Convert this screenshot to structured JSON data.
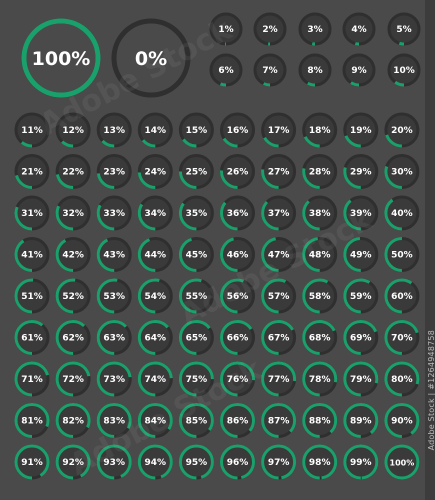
{
  "colors": {
    "background": "#4a4a4a",
    "circle_fill": "#3a3a3a",
    "track": "#2f2f2f",
    "progress": "#1aa06b",
    "text": "#ffffff"
  },
  "large_indicators": [
    {
      "value": 100,
      "label": "100%"
    },
    {
      "value": 0,
      "label": "0%"
    }
  ],
  "small_indicators": [
    {
      "value": 1,
      "label": "1%"
    },
    {
      "value": 2,
      "label": "2%"
    },
    {
      "value": 3,
      "label": "3%"
    },
    {
      "value": 4,
      "label": "4%"
    },
    {
      "value": 5,
      "label": "5%"
    },
    {
      "value": 6,
      "label": "6%"
    },
    {
      "value": 7,
      "label": "7%"
    },
    {
      "value": 8,
      "label": "8%"
    },
    {
      "value": 9,
      "label": "9%"
    },
    {
      "value": 10,
      "label": "10%"
    }
  ],
  "grid_indicators": [
    {
      "value": 11,
      "label": "11%"
    },
    {
      "value": 12,
      "label": "12%"
    },
    {
      "value": 13,
      "label": "13%"
    },
    {
      "value": 14,
      "label": "14%"
    },
    {
      "value": 15,
      "label": "15%"
    },
    {
      "value": 16,
      "label": "16%"
    },
    {
      "value": 17,
      "label": "17%"
    },
    {
      "value": 18,
      "label": "18%"
    },
    {
      "value": 19,
      "label": "19%"
    },
    {
      "value": 20,
      "label": "20%"
    },
    {
      "value": 21,
      "label": "21%"
    },
    {
      "value": 22,
      "label": "22%"
    },
    {
      "value": 23,
      "label": "23%"
    },
    {
      "value": 24,
      "label": "24%"
    },
    {
      "value": 25,
      "label": "25%"
    },
    {
      "value": 26,
      "label": "26%"
    },
    {
      "value": 27,
      "label": "27%"
    },
    {
      "value": 28,
      "label": "28%"
    },
    {
      "value": 29,
      "label": "29%"
    },
    {
      "value": 30,
      "label": "30%"
    },
    {
      "value": 31,
      "label": "31%"
    },
    {
      "value": 32,
      "label": "32%"
    },
    {
      "value": 33,
      "label": "33%"
    },
    {
      "value": 34,
      "label": "34%"
    },
    {
      "value": 35,
      "label": "35%"
    },
    {
      "value": 36,
      "label": "36%"
    },
    {
      "value": 37,
      "label": "37%"
    },
    {
      "value": 38,
      "label": "38%"
    },
    {
      "value": 39,
      "label": "39%"
    },
    {
      "value": 40,
      "label": "40%"
    },
    {
      "value": 41,
      "label": "41%"
    },
    {
      "value": 42,
      "label": "42%"
    },
    {
      "value": 43,
      "label": "43%"
    },
    {
      "value": 44,
      "label": "44%"
    },
    {
      "value": 45,
      "label": "45%"
    },
    {
      "value": 46,
      "label": "46%"
    },
    {
      "value": 47,
      "label": "47%"
    },
    {
      "value": 48,
      "label": "48%"
    },
    {
      "value": 49,
      "label": "49%"
    },
    {
      "value": 50,
      "label": "50%"
    },
    {
      "value": 51,
      "label": "51%"
    },
    {
      "value": 52,
      "label": "52%"
    },
    {
      "value": 53,
      "label": "53%"
    },
    {
      "value": 54,
      "label": "54%"
    },
    {
      "value": 55,
      "label": "55%"
    },
    {
      "value": 56,
      "label": "56%"
    },
    {
      "value": 57,
      "label": "57%"
    },
    {
      "value": 58,
      "label": "58%"
    },
    {
      "value": 59,
      "label": "59%"
    },
    {
      "value": 60,
      "label": "60%"
    },
    {
      "value": 61,
      "label": "61%"
    },
    {
      "value": 62,
      "label": "62%"
    },
    {
      "value": 63,
      "label": "63%"
    },
    {
      "value": 64,
      "label": "64%"
    },
    {
      "value": 65,
      "label": "65%"
    },
    {
      "value": 66,
      "label": "66%"
    },
    {
      "value": 67,
      "label": "67%"
    },
    {
      "value": 68,
      "label": "68%"
    },
    {
      "value": 69,
      "label": "69%"
    },
    {
      "value": 70,
      "label": "70%"
    },
    {
      "value": 71,
      "label": "71%"
    },
    {
      "value": 72,
      "label": "72%"
    },
    {
      "value": 73,
      "label": "73%"
    },
    {
      "value": 74,
      "label": "74%"
    },
    {
      "value": 75,
      "label": "75%"
    },
    {
      "value": 76,
      "label": "76%"
    },
    {
      "value": 77,
      "label": "77%"
    },
    {
      "value": 78,
      "label": "78%"
    },
    {
      "value": 79,
      "label": "79%"
    },
    {
      "value": 80,
      "label": "80%"
    },
    {
      "value": 81,
      "label": "81%"
    },
    {
      "value": 82,
      "label": "82%"
    },
    {
      "value": 83,
      "label": "83%"
    },
    {
      "value": 84,
      "label": "84%"
    },
    {
      "value": 85,
      "label": "85%"
    },
    {
      "value": 86,
      "label": "86%"
    },
    {
      "value": 87,
      "label": "87%"
    },
    {
      "value": 88,
      "label": "88%"
    },
    {
      "value": 89,
      "label": "89%"
    },
    {
      "value": 90,
      "label": "90%"
    },
    {
      "value": 91,
      "label": "91%"
    },
    {
      "value": 92,
      "label": "92%"
    },
    {
      "value": 93,
      "label": "93%"
    },
    {
      "value": 94,
      "label": "94%"
    },
    {
      "value": 95,
      "label": "95%"
    },
    {
      "value": 96,
      "label": "96%"
    },
    {
      "value": 97,
      "label": "97%"
    },
    {
      "value": 98,
      "label": "98%"
    },
    {
      "value": 99,
      "label": "99%"
    },
    {
      "value": 100,
      "label": "100%"
    }
  ],
  "watermark": {
    "text": "Adobe Stock"
  },
  "stock_id": {
    "text": "Adobe Stock | #1264948758"
  }
}
